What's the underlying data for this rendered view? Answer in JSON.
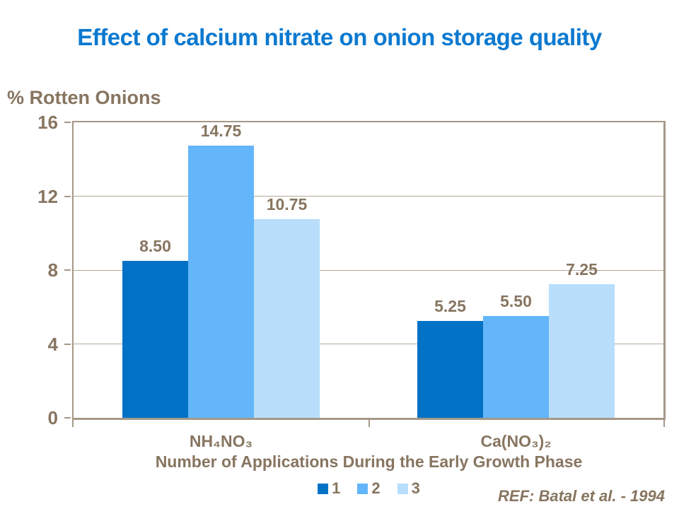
{
  "slide": {
    "title": "Effect of calcium nitrate on onion storage quality",
    "ref_note": "REF: Batal et al. - 1994"
  },
  "colors": {
    "title_blue": "#0b79d0",
    "text_brown": "#877560",
    "axis_line": "#a59888",
    "gridline": "#b5a999",
    "series": [
      "#0272c6",
      "#64b6fa",
      "#b8defc"
    ]
  },
  "chart_data": {
    "type": "bar",
    "title": "Effect of calcium nitrate on onion storage quality",
    "y_axis_label": "% Rotten Onions",
    "x_axis_label": "Number of Applications During the Early Growth Phase",
    "categories": [
      "NH₄NO₃",
      "Ca(NO₃)₂"
    ],
    "series": [
      {
        "name": "1",
        "color": "#0272c6",
        "values": [
          8.5,
          5.25
        ],
        "labels": [
          "8.50",
          "5.25"
        ]
      },
      {
        "name": "2",
        "color": "#64b6fa",
        "values": [
          14.75,
          5.5
        ],
        "labels": [
          "14.75",
          "5.50"
        ]
      },
      {
        "name": "3",
        "color": "#b8defc",
        "values": [
          10.75,
          7.25
        ],
        "labels": [
          "10.75",
          "7.25"
        ]
      }
    ],
    "ylim": [
      0,
      16
    ],
    "y_ticks": [
      0,
      4,
      8,
      12,
      16
    ],
    "grid": true,
    "legend_position": "bottom",
    "annotation": "REF: Batal et al. - 1994"
  }
}
